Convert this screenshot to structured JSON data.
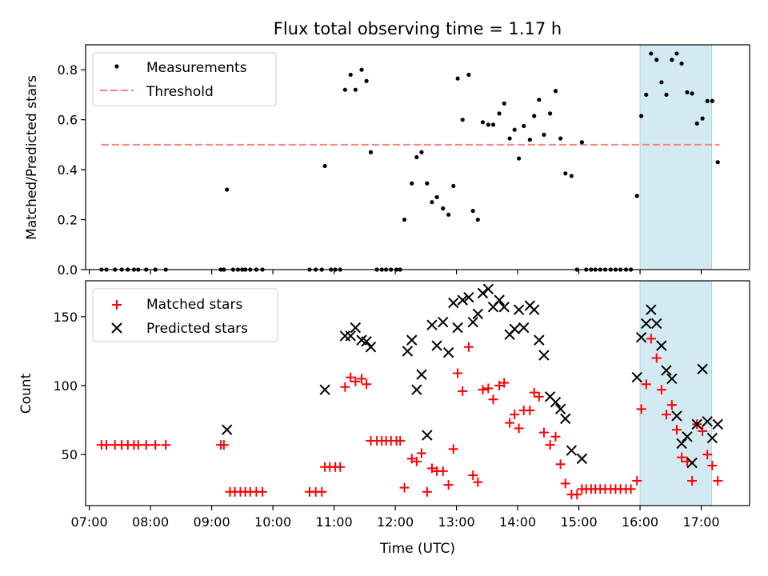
{
  "chart_data": {
    "type": "scatter",
    "title": "Flux total observing time = 1.17 h",
    "xlabel": "Time (UTC)",
    "x_tick_labels": [
      "07:00",
      "08:00",
      "09:00",
      "10:00",
      "11:00",
      "12:00",
      "13:00",
      "14:00",
      "15:00",
      "16:00",
      "17:00"
    ],
    "x_tick_hours": [
      7,
      8,
      9,
      10,
      11,
      12,
      13,
      14,
      15,
      16,
      17
    ],
    "xlim_hours": [
      6.94,
      17.79
    ],
    "highlight_span_hours": [
      16.0,
      17.17
    ],
    "highlight_color": "#d3eaf2",
    "top": {
      "ylabel": "Matched/Predicted stars",
      "ylim": [
        0,
        0.9
      ],
      "y_ticks": [
        0.0,
        0.2,
        0.4,
        0.6,
        0.8
      ],
      "y_tick_labels": [
        "0.0",
        "0.2",
        "0.4",
        "0.6",
        "0.8"
      ],
      "legend": {
        "location": "top-left",
        "measurements_label": "Measurements",
        "threshold_label": "Threshold"
      },
      "threshold": {
        "value": 0.5,
        "x_range_hours": [
          7.2,
          17.3
        ],
        "color": "#ff7f7f"
      },
      "measurements": [
        [
          7.2,
          0
        ],
        [
          7.28,
          0
        ],
        [
          7.42,
          0
        ],
        [
          7.53,
          0
        ],
        [
          7.63,
          0
        ],
        [
          7.73,
          0
        ],
        [
          7.8,
          0
        ],
        [
          7.93,
          0
        ],
        [
          8.08,
          0
        ],
        [
          8.25,
          0
        ],
        [
          9.15,
          0
        ],
        [
          9.2,
          0
        ],
        [
          9.25,
          0.32
        ],
        [
          9.35,
          0
        ],
        [
          9.43,
          0
        ],
        [
          9.5,
          0
        ],
        [
          9.55,
          0
        ],
        [
          9.63,
          0
        ],
        [
          9.73,
          0
        ],
        [
          9.83,
          0
        ],
        [
          10.6,
          0
        ],
        [
          10.7,
          0
        ],
        [
          10.8,
          0
        ],
        [
          10.85,
          0.415
        ],
        [
          10.95,
          0
        ],
        [
          11.02,
          0
        ],
        [
          11.1,
          0
        ],
        [
          11.18,
          0.72
        ],
        [
          11.27,
          0.78
        ],
        [
          11.35,
          0.72
        ],
        [
          11.45,
          0.8
        ],
        [
          11.53,
          0.755
        ],
        [
          11.6,
          0.47
        ],
        [
          11.7,
          0
        ],
        [
          11.78,
          0
        ],
        [
          11.85,
          0
        ],
        [
          11.93,
          0
        ],
        [
          12.02,
          0
        ],
        [
          12.08,
          0
        ],
        [
          12.15,
          0.2
        ],
        [
          12.27,
          0.345
        ],
        [
          12.35,
          0.45
        ],
        [
          12.43,
          0.47
        ],
        [
          12.52,
          0.345
        ],
        [
          12.6,
          0.27
        ],
        [
          12.68,
          0.29
        ],
        [
          12.78,
          0.245
        ],
        [
          12.87,
          0.22
        ],
        [
          12.95,
          0.335
        ],
        [
          13.02,
          0.765
        ],
        [
          13.1,
          0.6
        ],
        [
          13.2,
          0.78
        ],
        [
          13.27,
          0.235
        ],
        [
          13.35,
          0.2
        ],
        [
          13.43,
          0.59
        ],
        [
          13.52,
          0.58
        ],
        [
          13.6,
          0.58
        ],
        [
          13.7,
          0.625
        ],
        [
          13.78,
          0.665
        ],
        [
          13.87,
          0.525
        ],
        [
          13.95,
          0.56
        ],
        [
          14.02,
          0.445
        ],
        [
          14.1,
          0.575
        ],
        [
          14.2,
          0.52
        ],
        [
          14.27,
          0.615
        ],
        [
          14.35,
          0.68
        ],
        [
          14.43,
          0.54
        ],
        [
          14.53,
          0.625
        ],
        [
          14.62,
          0.715
        ],
        [
          14.7,
          0.525
        ],
        [
          14.78,
          0.385
        ],
        [
          14.88,
          0.375
        ],
        [
          14.97,
          0
        ],
        [
          15.05,
          0.51
        ],
        [
          15.12,
          0
        ],
        [
          15.2,
          0
        ],
        [
          15.27,
          0
        ],
        [
          15.35,
          0
        ],
        [
          15.43,
          0
        ],
        [
          15.52,
          0
        ],
        [
          15.6,
          0
        ],
        [
          15.68,
          0
        ],
        [
          15.77,
          0
        ],
        [
          15.85,
          0
        ],
        [
          15.95,
          0.295
        ],
        [
          16.02,
          0.615
        ],
        [
          16.1,
          0.7
        ],
        [
          16.18,
          0.865
        ],
        [
          16.27,
          0.84
        ],
        [
          16.35,
          0.75
        ],
        [
          16.43,
          0.7
        ],
        [
          16.52,
          0.84
        ],
        [
          16.6,
          0.865
        ],
        [
          16.68,
          0.825
        ],
        [
          16.77,
          0.71
        ],
        [
          16.85,
          0.705
        ],
        [
          16.93,
          0.585
        ],
        [
          17.02,
          0.605
        ],
        [
          17.1,
          0.675
        ],
        [
          17.18,
          0.675
        ],
        [
          17.27,
          0.43
        ]
      ]
    },
    "bottom": {
      "ylabel": "Count",
      "ylim": [
        13,
        176
      ],
      "y_ticks": [
        50,
        100,
        150
      ],
      "y_tick_labels": [
        "50",
        "100",
        "150"
      ],
      "legend": {
        "location": "top-left",
        "matched_label": "Matched stars",
        "predicted_label": "Predicted stars"
      },
      "series_colors": {
        "matched": "#ff0000",
        "predicted": "#000000"
      },
      "matched": [
        [
          7.2,
          57
        ],
        [
          7.28,
          57
        ],
        [
          7.42,
          57
        ],
        [
          7.53,
          57
        ],
        [
          7.63,
          57
        ],
        [
          7.73,
          57
        ],
        [
          7.8,
          57
        ],
        [
          7.93,
          57
        ],
        [
          8.08,
          57
        ],
        [
          8.25,
          57
        ],
        [
          9.15,
          57
        ],
        [
          9.2,
          57
        ],
        [
          9.3,
          23
        ],
        [
          9.38,
          23
        ],
        [
          9.47,
          23
        ],
        [
          9.55,
          23
        ],
        [
          9.63,
          23
        ],
        [
          9.73,
          23
        ],
        [
          9.83,
          23
        ],
        [
          10.6,
          23
        ],
        [
          10.7,
          23
        ],
        [
          10.8,
          23
        ],
        [
          10.85,
          41
        ],
        [
          10.93,
          41
        ],
        [
          11.02,
          41
        ],
        [
          11.1,
          41
        ],
        [
          11.18,
          99
        ],
        [
          11.27,
          106
        ],
        [
          11.35,
          103
        ],
        [
          11.45,
          105
        ],
        [
          11.53,
          101
        ],
        [
          11.6,
          60
        ],
        [
          11.7,
          60
        ],
        [
          11.78,
          60
        ],
        [
          11.85,
          60
        ],
        [
          11.93,
          60
        ],
        [
          12.02,
          60
        ],
        [
          12.08,
          60
        ],
        [
          12.15,
          26
        ],
        [
          12.27,
          47
        ],
        [
          12.35,
          45
        ],
        [
          12.43,
          51
        ],
        [
          12.52,
          23
        ],
        [
          12.6,
          40
        ],
        [
          12.68,
          38
        ],
        [
          12.78,
          38
        ],
        [
          12.87,
          28
        ],
        [
          12.95,
          54
        ],
        [
          13.02,
          109
        ],
        [
          13.1,
          96
        ],
        [
          13.2,
          128
        ],
        [
          13.27,
          35
        ],
        [
          13.35,
          30
        ],
        [
          13.43,
          97
        ],
        [
          13.52,
          98
        ],
        [
          13.6,
          90
        ],
        [
          13.7,
          100
        ],
        [
          13.78,
          102
        ],
        [
          13.87,
          73
        ],
        [
          13.95,
          79
        ],
        [
          14.02,
          69
        ],
        [
          14.1,
          82
        ],
        [
          14.2,
          82
        ],
        [
          14.27,
          95
        ],
        [
          14.35,
          92
        ],
        [
          14.43,
          66
        ],
        [
          14.53,
          57
        ],
        [
          14.62,
          63
        ],
        [
          14.7,
          43
        ],
        [
          14.78,
          29
        ],
        [
          14.88,
          21
        ],
        [
          14.97,
          21
        ],
        [
          15.05,
          25
        ],
        [
          15.12,
          25
        ],
        [
          15.2,
          25
        ],
        [
          15.27,
          25
        ],
        [
          15.35,
          25
        ],
        [
          15.43,
          25
        ],
        [
          15.52,
          25
        ],
        [
          15.6,
          25
        ],
        [
          15.68,
          25
        ],
        [
          15.77,
          25
        ],
        [
          15.85,
          25
        ],
        [
          15.95,
          31
        ],
        [
          16.02,
          83
        ],
        [
          16.1,
          101
        ],
        [
          16.18,
          134
        ],
        [
          16.27,
          120
        ],
        [
          16.35,
          97
        ],
        [
          16.43,
          79
        ],
        [
          16.52,
          86
        ],
        [
          16.6,
          68
        ],
        [
          16.68,
          48
        ],
        [
          16.77,
          45
        ],
        [
          16.85,
          31
        ],
        [
          16.93,
          72
        ],
        [
          17.02,
          67
        ],
        [
          17.1,
          50
        ],
        [
          17.18,
          42
        ],
        [
          17.27,
          31
        ]
      ],
      "predicted": [
        [
          9.25,
          68
        ],
        [
          10.85,
          97
        ],
        [
          11.18,
          136
        ],
        [
          11.27,
          136
        ],
        [
          11.35,
          142
        ],
        [
          11.45,
          133
        ],
        [
          11.53,
          132
        ],
        [
          11.6,
          128
        ],
        [
          12.2,
          125
        ],
        [
          12.27,
          133
        ],
        [
          12.35,
          97
        ],
        [
          12.43,
          108
        ],
        [
          12.52,
          64
        ],
        [
          12.6,
          144
        ],
        [
          12.68,
          129
        ],
        [
          12.78,
          146
        ],
        [
          12.87,
          124
        ],
        [
          12.95,
          160
        ],
        [
          13.02,
          142
        ],
        [
          13.1,
          162
        ],
        [
          13.2,
          164
        ],
        [
          13.27,
          146
        ],
        [
          13.35,
          152
        ],
        [
          13.43,
          167
        ],
        [
          13.52,
          170
        ],
        [
          13.6,
          157
        ],
        [
          13.7,
          162
        ],
        [
          13.78,
          157
        ],
        [
          13.87,
          137
        ],
        [
          13.95,
          141
        ],
        [
          14.02,
          155
        ],
        [
          14.1,
          142
        ],
        [
          14.2,
          158
        ],
        [
          14.27,
          155
        ],
        [
          14.35,
          133
        ],
        [
          14.43,
          122
        ],
        [
          14.53,
          92
        ],
        [
          14.62,
          88
        ],
        [
          14.7,
          83
        ],
        [
          14.78,
          76
        ],
        [
          14.88,
          53
        ],
        [
          15.05,
          47
        ],
        [
          15.95,
          106
        ],
        [
          16.02,
          135
        ],
        [
          16.1,
          145
        ],
        [
          16.18,
          155
        ],
        [
          16.27,
          145
        ],
        [
          16.35,
          129
        ],
        [
          16.43,
          111
        ],
        [
          16.52,
          105
        ],
        [
          16.6,
          78
        ],
        [
          16.68,
          58
        ],
        [
          16.77,
          63
        ],
        [
          16.85,
          44
        ],
        [
          16.93,
          72
        ],
        [
          17.02,
          112
        ],
        [
          17.1,
          74
        ],
        [
          17.18,
          62
        ],
        [
          17.27,
          72
        ]
      ]
    }
  }
}
